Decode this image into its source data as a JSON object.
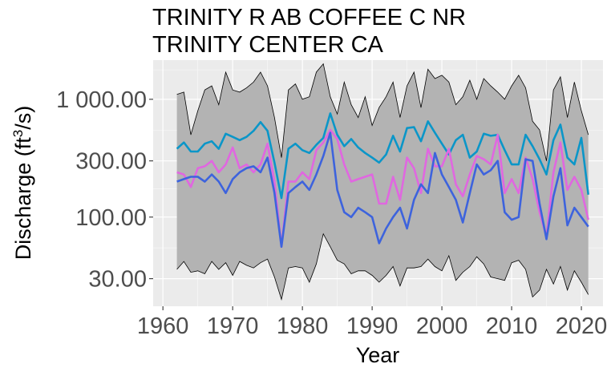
{
  "chart_data": {
    "type": "line",
    "title_lines": [
      "TRINITY R AB COFFEE C NR",
      "TRINITY CENTER CA"
    ],
    "xlabel": "Year",
    "ylabel": {
      "prefix": "Discharge (ft",
      "sup": "3",
      "suffix": "/s)"
    },
    "x_ticks": [
      1960,
      1970,
      1980,
      1990,
      2000,
      2010,
      2020
    ],
    "y_ticks": [
      30,
      100,
      300,
      1000
    ],
    "y_tick_labels": [
      "30.00",
      "100.00",
      "300.00",
      "1 000.00"
    ],
    "y_scale": "log10",
    "xlim": [
      1958.6,
      2023.1
    ],
    "ylim": [
      17.5,
      2150
    ],
    "grid": true,
    "x": [
      1962,
      1963,
      1964,
      1965,
      1966,
      1967,
      1968,
      1969,
      1970,
      1971,
      1972,
      1973,
      1974,
      1975,
      1976,
      1977,
      1978,
      1979,
      1980,
      1981,
      1982,
      1983,
      1984,
      1985,
      1986,
      1987,
      1988,
      1989,
      1990,
      1991,
      1992,
      1993,
      1994,
      1995,
      1996,
      1997,
      1998,
      1999,
      2000,
      2001,
      2002,
      2003,
      2004,
      2005,
      2006,
      2007,
      2008,
      2009,
      2010,
      2011,
      2012,
      2013,
      2014,
      2015,
      2016,
      2017,
      2018,
      2019,
      2020,
      2021
    ],
    "band": {
      "upper": [
        1100,
        1150,
        500,
        800,
        1200,
        1300,
        900,
        1700,
        1200,
        1150,
        1250,
        1400,
        1700,
        1300,
        700,
        320,
        1200,
        1350,
        1000,
        1050,
        1700,
        2000,
        1050,
        750,
        1400,
        900,
        700,
        1050,
        600,
        850,
        1050,
        1400,
        700,
        1300,
        1700,
        850,
        1800,
        1500,
        1600,
        1400,
        900,
        1050,
        1450,
        1000,
        1500,
        1300,
        1150,
        1000,
        1300,
        1600,
        1250,
        650,
        550,
        300,
        1200,
        1550,
        700,
        1400,
        800,
        500
      ],
      "lower": [
        36,
        42,
        34,
        35,
        33,
        42,
        36,
        41,
        32,
        42,
        39,
        37,
        41,
        44,
        31,
        20,
        37,
        38,
        37,
        28,
        40,
        72,
        56,
        43,
        40,
        33,
        35,
        35,
        32,
        28,
        32,
        38,
        26,
        37,
        37,
        38,
        44,
        38,
        35,
        47,
        29,
        34,
        38,
        46,
        40,
        31,
        30,
        29,
        41,
        43,
        36,
        21,
        24,
        36,
        27,
        38,
        24,
        35,
        28,
        22
      ]
    },
    "series": [
      {
        "color": "#0b96c8",
        "values": [
          380,
          430,
          360,
          360,
          420,
          440,
          380,
          510,
          480,
          450,
          480,
          540,
          640,
          540,
          290,
          145,
          380,
          420,
          370,
          350,
          410,
          470,
          760,
          500,
          400,
          460,
          390,
          350,
          320,
          290,
          340,
          490,
          360,
          570,
          580,
          440,
          650,
          520,
          420,
          340,
          450,
          500,
          320,
          360,
          510,
          490,
          500,
          370,
          280,
          280,
          500,
          400,
          310,
          230,
          450,
          610,
          320,
          280,
          470,
          155
        ]
      },
      {
        "color": "#e067e0",
        "values": [
          240,
          230,
          180,
          260,
          270,
          300,
          240,
          280,
          390,
          260,
          280,
          240,
          280,
          420,
          200,
          56,
          200,
          200,
          240,
          210,
          370,
          430,
          550,
          460,
          280,
          200,
          210,
          220,
          230,
          130,
          130,
          220,
          140,
          320,
          260,
          160,
          380,
          270,
          270,
          380,
          190,
          150,
          230,
          330,
          310,
          280,
          500,
          160,
          210,
          160,
          320,
          210,
          110,
          68,
          240,
          430,
          170,
          220,
          170,
          95
        ]
      },
      {
        "color": "#3d63dd",
        "values": [
          200,
          210,
          220,
          220,
          200,
          230,
          200,
          160,
          210,
          240,
          260,
          270,
          240,
          320,
          160,
          56,
          160,
          180,
          200,
          170,
          230,
          330,
          520,
          170,
          110,
          100,
          120,
          110,
          100,
          60,
          80,
          100,
          120,
          80,
          140,
          190,
          160,
          350,
          230,
          180,
          140,
          90,
          160,
          280,
          230,
          250,
          300,
          110,
          95,
          100,
          310,
          300,
          130,
          65,
          150,
          260,
          85,
          120,
          100,
          83
        ]
      }
    ]
  }
}
